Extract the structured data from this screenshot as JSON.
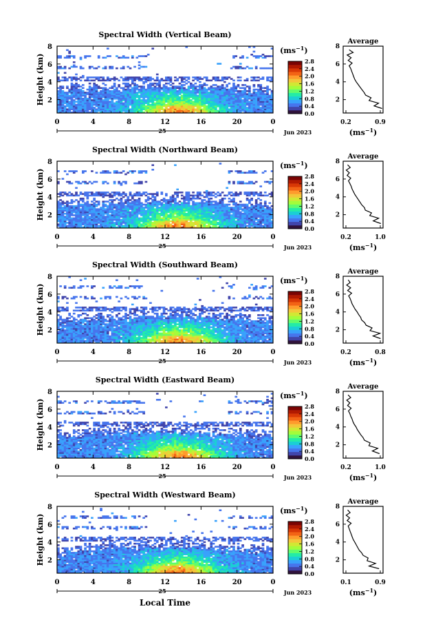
{
  "figure": {
    "x_axis_title": "Local Time",
    "colorbar_unit": "(ms",
    "colorbar_unit_exp": "−1",
    "colorbar_unit_close": ")",
    "profile_title": "Average",
    "profile_xlabel": "(ms",
    "profile_xlabel_exp": "−1",
    "profile_xlabel_close": ")",
    "date_label": "Jun 2023",
    "day_label": "25",
    "colors": {
      "colormap": [
        "#30123b",
        "#4145ab",
        "#4675ed",
        "#39a2fc",
        "#1bcfd4",
        "#24eca6",
        "#61fc6c",
        "#a4fc3b",
        "#d1e834",
        "#f3c63a",
        "#fe9b2d",
        "#f36315",
        "#d93806",
        "#b11901",
        "#7a0403"
      ],
      "background": "#ffffff"
    }
  },
  "chart_data": [
    {
      "type": "heatmap",
      "title": "Spectral Width (Vertical Beam)",
      "ylabel": "Height (km)",
      "xlabel": "",
      "x_ticks": [
        "0",
        "4",
        "8",
        "12",
        "16",
        "20",
        "0"
      ],
      "y_ticks": [
        "2",
        "4",
        "6",
        "8"
      ],
      "xlim": [
        0,
        24
      ],
      "ylim": [
        0.5,
        8
      ],
      "colorbar": {
        "ticks": [
          "0.0",
          "0.4",
          "0.8",
          "1.2",
          "1.6",
          "2.0",
          "2.4",
          "2.8"
        ],
        "range": [
          0,
          2.8
        ]
      },
      "profile": {
        "title": "Average",
        "x_ticks": [
          "0.2",
          "0.9"
        ],
        "xlim": [
          0.1,
          0.9
        ],
        "y_ticks": [
          "2",
          "4",
          "6",
          "8"
        ],
        "ylim": [
          0.5,
          8
        ],
        "heights": [
          1.0,
          1.3,
          1.6,
          1.9,
          2.2,
          2.5,
          2.8,
          3.1,
          3.4,
          3.7,
          4.0,
          4.3,
          4.6,
          4.9,
          5.2,
          5.5,
          5.8,
          6.1,
          6.4,
          6.7,
          7.0,
          7.3,
          7.6
        ],
        "values": [
          0.88,
          0.72,
          0.81,
          0.62,
          0.66,
          0.55,
          0.52,
          0.48,
          0.44,
          0.4,
          0.36,
          0.33,
          0.31,
          0.29,
          0.27,
          0.25,
          0.22,
          0.28,
          0.2,
          0.26,
          0.18,
          0.3,
          0.22
        ]
      }
    },
    {
      "type": "heatmap",
      "title": "Spectral Width (Northward Beam)",
      "ylabel": "Height (km)",
      "xlabel": "",
      "x_ticks": [
        "0",
        "4",
        "8",
        "12",
        "16",
        "20",
        "0"
      ],
      "y_ticks": [
        "2",
        "4",
        "6",
        "8"
      ],
      "xlim": [
        0,
        24
      ],
      "ylim": [
        0.5,
        8
      ],
      "colorbar": {
        "ticks": [
          "0.0",
          "0.4",
          "0.8",
          "1.2",
          "1.6",
          "2.0",
          "2.4",
          "2.8"
        ],
        "range": [
          0,
          2.8
        ]
      },
      "profile": {
        "title": "Average",
        "x_ticks": [
          "0.2",
          "1.0"
        ],
        "xlim": [
          0.1,
          1.0
        ],
        "y_ticks": [
          "2",
          "4",
          "6",
          "8"
        ],
        "ylim": [
          0.5,
          8
        ],
        "heights": [
          1.0,
          1.3,
          1.6,
          1.9,
          2.2,
          2.5,
          2.8,
          3.1,
          3.4,
          3.7,
          4.0,
          4.3,
          4.6,
          4.9,
          5.2,
          5.5,
          5.8,
          6.1,
          6.4,
          6.7,
          7.0,
          7.3,
          7.6
        ],
        "values": [
          0.95,
          0.78,
          0.9,
          0.7,
          0.74,
          0.6,
          0.58,
          0.52,
          0.48,
          0.44,
          0.4,
          0.36,
          0.33,
          0.3,
          0.28,
          0.25,
          0.22,
          0.27,
          0.19,
          0.24,
          0.17,
          0.26,
          0.2
        ]
      }
    },
    {
      "type": "heatmap",
      "title": "Spectral Width (Southward Beam)",
      "ylabel": "Height (km)",
      "xlabel": "",
      "x_ticks": [
        "0",
        "4",
        "8",
        "12",
        "16",
        "20",
        "0"
      ],
      "y_ticks": [
        "2",
        "4",
        "6",
        "8"
      ],
      "xlim": [
        0,
        24
      ],
      "ylim": [
        0.5,
        8
      ],
      "colorbar": {
        "ticks": [
          "0.0",
          "0.4",
          "0.8",
          "1.2",
          "1.6",
          "2.0",
          "2.4",
          "2.8"
        ],
        "range": [
          0,
          2.8
        ]
      },
      "profile": {
        "title": "Average",
        "x_ticks": [
          "0.2",
          "0.8"
        ],
        "xlim": [
          0.1,
          0.9
        ],
        "y_ticks": [
          "2",
          "4",
          "6",
          "8"
        ],
        "ylim": [
          0.5,
          8
        ],
        "heights": [
          1.0,
          1.3,
          1.6,
          1.9,
          2.2,
          2.5,
          2.8,
          3.1,
          3.4,
          3.7,
          4.0,
          4.3,
          4.6,
          4.9,
          5.2,
          5.5,
          5.8,
          6.1,
          6.4,
          6.7,
          7.0,
          7.3,
          7.6
        ],
        "values": [
          0.85,
          0.7,
          0.84,
          0.64,
          0.68,
          0.56,
          0.53,
          0.47,
          0.45,
          0.41,
          0.38,
          0.34,
          0.31,
          0.28,
          0.26,
          0.24,
          0.21,
          0.27,
          0.19,
          0.25,
          0.17,
          0.24,
          0.2
        ]
      }
    },
    {
      "type": "heatmap",
      "title": "Spectral Width (Eastward Beam)",
      "ylabel": "Height (km)",
      "xlabel": "",
      "x_ticks": [
        "0",
        "4",
        "8",
        "12",
        "16",
        "20",
        "0"
      ],
      "y_ticks": [
        "2",
        "4",
        "6",
        "8"
      ],
      "xlim": [
        0,
        24
      ],
      "ylim": [
        0.5,
        8
      ],
      "colorbar": {
        "ticks": [
          "0.0",
          "0.4",
          "0.8",
          "1.2",
          "1.6",
          "2.0",
          "2.4",
          "2.8"
        ],
        "range": [
          0,
          2.8
        ]
      },
      "profile": {
        "title": "Average",
        "x_ticks": [
          "0.2",
          "1.0"
        ],
        "xlim": [
          0.1,
          1.0
        ],
        "y_ticks": [
          "2",
          "4",
          "6",
          "8"
        ],
        "ylim": [
          0.5,
          8
        ],
        "heights": [
          1.0,
          1.3,
          1.6,
          1.9,
          2.2,
          2.5,
          2.8,
          3.1,
          3.4,
          3.7,
          4.0,
          4.3,
          4.6,
          4.9,
          5.2,
          5.5,
          5.8,
          6.1,
          6.4,
          6.7,
          7.0,
          7.3,
          7.6
        ],
        "values": [
          0.92,
          0.76,
          0.88,
          0.68,
          0.71,
          0.58,
          0.55,
          0.5,
          0.46,
          0.42,
          0.39,
          0.35,
          0.32,
          0.3,
          0.27,
          0.25,
          0.22,
          0.28,
          0.2,
          0.25,
          0.18,
          0.27,
          0.21
        ]
      }
    },
    {
      "type": "heatmap",
      "title": "Spectral Width (Westward Beam)",
      "ylabel": "Height (km)",
      "xlabel": "Local Time",
      "x_ticks": [
        "0",
        "4",
        "8",
        "12",
        "16",
        "20",
        "0"
      ],
      "y_ticks": [
        "2",
        "4",
        "6",
        "8"
      ],
      "xlim": [
        0,
        24
      ],
      "ylim": [
        0.5,
        8
      ],
      "colorbar": {
        "ticks": [
          "0.0",
          "0.4",
          "0.8",
          "1.2",
          "1.6",
          "2.0",
          "2.4",
          "2.8"
        ],
        "range": [
          0,
          2.8
        ]
      },
      "profile": {
        "title": "Average",
        "x_ticks": [
          "0.1",
          "0.9"
        ],
        "xlim": [
          0.1,
          0.9
        ],
        "y_ticks": [
          "2",
          "4",
          "6",
          "8"
        ],
        "ylim": [
          0.5,
          8
        ],
        "heights": [
          1.0,
          1.3,
          1.6,
          1.9,
          2.2,
          2.5,
          2.8,
          3.1,
          3.4,
          3.7,
          4.0,
          4.3,
          4.6,
          4.9,
          5.2,
          5.5,
          5.8,
          6.1,
          6.4,
          6.7,
          7.0,
          7.3,
          7.6
        ],
        "values": [
          0.82,
          0.62,
          0.75,
          0.58,
          0.6,
          0.5,
          0.47,
          0.42,
          0.39,
          0.36,
          0.33,
          0.3,
          0.28,
          0.26,
          0.24,
          0.22,
          0.2,
          0.26,
          0.18,
          0.23,
          0.16,
          0.24,
          0.19
        ]
      }
    }
  ]
}
